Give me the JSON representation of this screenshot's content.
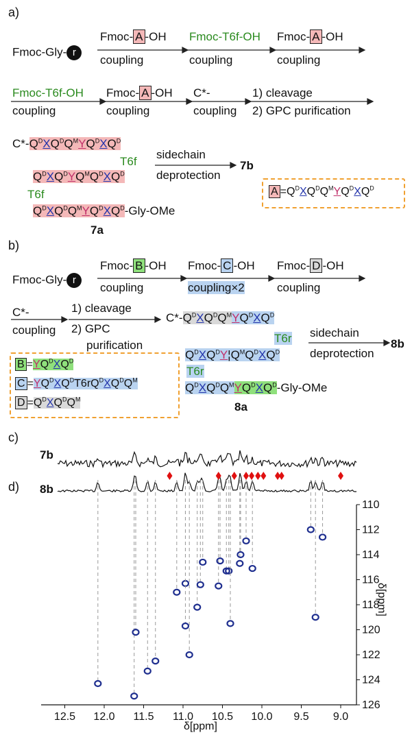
{
  "panels": {
    "a": "a)",
    "b": "b)",
    "c": "c)",
    "d": "d)"
  },
  "panel_a": {
    "start": "Fmoc-Gly-",
    "resin": "r",
    "reagents": [
      {
        "pre": "Fmoc-",
        "box": "A",
        "post": "-OH",
        "below": "coupling"
      },
      {
        "pre": "Fmoc-T6f-OH",
        "below": "coupling"
      },
      {
        "pre": "Fmoc-",
        "box": "A",
        "post": "-OH",
        "below": "coupling"
      },
      {
        "pre": "Fmoc-T6f-OH",
        "below": "coupling"
      },
      {
        "pre": "Fmoc-",
        "box": "A",
        "post": "-OH",
        "below": "coupling"
      },
      {
        "pre": "C*-",
        "below": "coupling"
      }
    ],
    "cleavage": "1) cleavage",
    "gpc": "2) GPC purification",
    "chain1_prefix": "C*-",
    "t6f": "T6f",
    "chain3_suffix": "-Gly-OMe",
    "compound_a": "7a",
    "step_top": "sidechain",
    "step_bottom": "deprotection",
    "compound_b": "7b",
    "def_box": "A",
    "def_eq": "="
  },
  "panel_b": {
    "start": "Fmoc-Gly-",
    "resin": "r",
    "reagent_b": {
      "pre": "Fmoc-",
      "box": "B",
      "post": "-OH",
      "below": "coupling"
    },
    "reagent_c": {
      "pre": "Fmoc-",
      "box": "C",
      "post": "-OH",
      "below": "coupling×2"
    },
    "reagent_d": {
      "pre": "Fmoc-",
      "box": "D",
      "post": "-OH",
      "below": "coupling"
    },
    "c_star": "C*-",
    "coupling": "coupling",
    "cleavage": "1) cleavage",
    "gpc": "2) GPC",
    "purification": "purification",
    "chain1_prefix": "C*-",
    "t6r": "T6r",
    "t6r_mid": "T6r",
    "chain3_suffix": "-Gly-OMe",
    "compound_a": "8a",
    "step_top": "sidechain",
    "step_bottom": "deprotection",
    "compound_b": "8b",
    "defs": [
      {
        "box": "B"
      },
      {
        "box": "C",
        "mid": "T6r"
      },
      {
        "box": "D"
      }
    ]
  },
  "panel_c": {
    "label_7b": "7b",
    "label_8b": "8b"
  },
  "colors": {
    "contour": "#1f2f8f",
    "marker": "#e01010",
    "green": "#2a8a1e",
    "red_bg": "#f4b8b8",
    "blue_bg": "#b9d3f0",
    "green_bg": "#8fe07c",
    "gray_bg": "#d9d9d9"
  },
  "chart_data": {
    "type": "scatter",
    "xlabel": "δ[ppm]",
    "ylabel": "δ[ppm]",
    "xlim": [
      12.8,
      8.8
    ],
    "ylim": [
      110,
      126
    ],
    "x_ticks": [
      "12.5",
      "12.0",
      "11.5",
      "11.0",
      "10.5",
      "10.0",
      "9.5",
      "9.0"
    ],
    "y_ticks": [
      "110",
      "112",
      "114",
      "116",
      "118",
      "120",
      "122",
      "124",
      "126"
    ],
    "peaks": [
      {
        "x": 12.08,
        "y": 124.3
      },
      {
        "x": 11.62,
        "y": 125.3
      },
      {
        "x": 11.6,
        "y": 120.2
      },
      {
        "x": 11.45,
        "y": 123.3
      },
      {
        "x": 11.35,
        "y": 122.5
      },
      {
        "x": 11.08,
        "y": 117.0
      },
      {
        "x": 10.97,
        "y": 116.3
      },
      {
        "x": 10.97,
        "y": 119.7
      },
      {
        "x": 10.92,
        "y": 122.0
      },
      {
        "x": 10.82,
        "y": 118.2
      },
      {
        "x": 10.78,
        "y": 116.4
      },
      {
        "x": 10.75,
        "y": 114.6
      },
      {
        "x": 10.55,
        "y": 116.5
      },
      {
        "x": 10.53,
        "y": 114.5
      },
      {
        "x": 10.45,
        "y": 115.3
      },
      {
        "x": 10.42,
        "y": 115.3
      },
      {
        "x": 10.4,
        "y": 119.5
      },
      {
        "x": 10.28,
        "y": 114.7
      },
      {
        "x": 10.27,
        "y": 114.0
      },
      {
        "x": 10.2,
        "y": 112.9
      },
      {
        "x": 10.12,
        "y": 115.1
      },
      {
        "x": 9.38,
        "y": 112.0
      },
      {
        "x": 9.32,
        "y": 119.0
      },
      {
        "x": 9.23,
        "y": 112.6
      }
    ],
    "markers_x": [
      11.17,
      10.55,
      10.35,
      10.2,
      10.13,
      10.05,
      9.98,
      9.8,
      9.75,
      9.0
    ]
  }
}
